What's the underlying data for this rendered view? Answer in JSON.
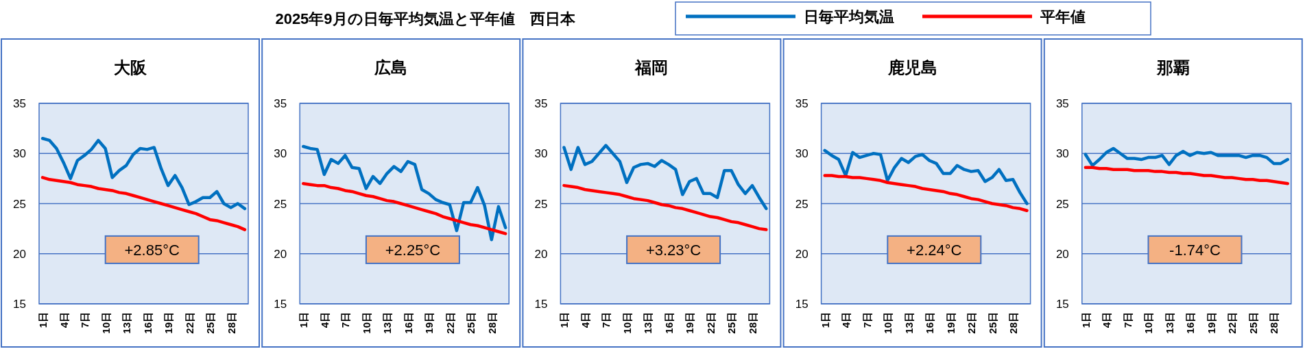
{
  "chart_data": [
    {
      "type": "other",
      "title": "2025年9月の日毎平均気温と平年値　西日本"
    },
    {
      "type": "line",
      "title": "大阪",
      "categories": [
        "1日",
        null,
        null,
        "4日",
        null,
        null,
        "7日",
        null,
        null,
        "10日",
        null,
        null,
        "13日",
        null,
        null,
        "16日",
        null,
        null,
        "19日",
        null,
        null,
        "22日",
        null,
        null,
        "25日",
        null,
        null,
        "28日",
        null,
        null
      ],
      "ylim": [
        15,
        35
      ],
      "yticks": [
        15,
        20,
        25,
        30,
        35
      ],
      "grid": "y",
      "legend": "top",
      "line_style": "solid",
      "annotations": [
        "+2.85°C"
      ],
      "series": [
        {
          "name": "日毎平均気温",
          "color": "#0070c0",
          "values": [
            31.5,
            31.3,
            30.5,
            29.1,
            27.5,
            29.3,
            29.8,
            30.4,
            31.3,
            30.5,
            27.6,
            28.3,
            28.8,
            29.9,
            30.5,
            30.4,
            30.6,
            28.5,
            26.8,
            27.8,
            26.6,
            24.9,
            25.2,
            25.6,
            25.6,
            26.2,
            25.0,
            24.6,
            25.0,
            24.5
          ]
        },
        {
          "name": "平年値",
          "color": "#ff0000",
          "values": [
            27.6,
            27.4,
            27.3,
            27.2,
            27.1,
            26.9,
            26.8,
            26.7,
            26.5,
            26.4,
            26.3,
            26.1,
            26.0,
            25.8,
            25.6,
            25.4,
            25.2,
            25.0,
            24.8,
            24.6,
            24.4,
            24.2,
            24.0,
            23.7,
            23.4,
            23.3,
            23.1,
            22.9,
            22.7,
            22.4
          ]
        }
      ]
    },
    {
      "type": "line",
      "title": "広島",
      "categories": [
        "1日",
        null,
        null,
        "4日",
        null,
        null,
        "7日",
        null,
        null,
        "10日",
        null,
        null,
        "13日",
        null,
        null,
        "16日",
        null,
        null,
        "19日",
        null,
        null,
        "22日",
        null,
        null,
        "25日",
        null,
        null,
        "28日",
        null,
        null
      ],
      "ylim": [
        15,
        35
      ],
      "yticks": [
        15,
        20,
        25,
        30,
        35
      ],
      "grid": "y",
      "line_style": "solid",
      "annotations": [
        "+2.25°C"
      ],
      "series": [
        {
          "color": "#0070c0",
          "values": [
            30.7,
            30.5,
            30.4,
            27.9,
            29.4,
            29.0,
            29.8,
            28.6,
            28.5,
            26.5,
            27.7,
            27.0,
            28.0,
            28.7,
            28.2,
            29.2,
            28.9,
            26.4,
            26.0,
            25.4,
            25.1,
            24.9,
            22.3,
            25.1,
            25.1,
            26.6,
            24.8,
            21.4,
            24.7,
            22.6
          ]
        },
        {
          "color": "#ff0000",
          "values": [
            27.0,
            26.9,
            26.8,
            26.8,
            26.6,
            26.5,
            26.3,
            26.2,
            26.0,
            25.8,
            25.7,
            25.5,
            25.3,
            25.2,
            25.0,
            24.8,
            24.6,
            24.4,
            24.2,
            24.0,
            23.7,
            23.5,
            23.3,
            23.1,
            22.9,
            22.8,
            22.6,
            22.4,
            22.2,
            22.0
          ]
        }
      ]
    },
    {
      "type": "line",
      "title": "福岡",
      "categories": [
        "1日",
        null,
        null,
        "4日",
        null,
        null,
        "7日",
        null,
        null,
        "10日",
        null,
        null,
        "13日",
        null,
        null,
        "16日",
        null,
        null,
        "19日",
        null,
        null,
        "22日",
        null,
        null,
        "25日",
        null,
        null,
        "28日",
        null,
        null
      ],
      "ylim": [
        15,
        35
      ],
      "yticks": [
        15,
        20,
        25,
        30,
        35
      ],
      "grid": "y",
      "line_style": "solid",
      "annotations": [
        "+3.23°C"
      ],
      "series": [
        {
          "color": "#0070c0",
          "values": [
            30.6,
            28.4,
            30.6,
            28.9,
            29.2,
            30.0,
            30.8,
            30.0,
            29.2,
            27.1,
            28.6,
            28.9,
            29.0,
            28.7,
            29.3,
            28.9,
            28.4,
            25.9,
            27.2,
            27.5,
            26.0,
            26.0,
            25.6,
            28.3,
            28.3,
            26.9,
            26.0,
            26.8,
            25.6,
            24.5
          ]
        },
        {
          "color": "#ff0000",
          "values": [
            26.8,
            26.7,
            26.6,
            26.4,
            26.3,
            26.2,
            26.1,
            26.0,
            25.9,
            25.7,
            25.5,
            25.4,
            25.3,
            25.1,
            24.9,
            24.8,
            24.6,
            24.5,
            24.3,
            24.1,
            23.9,
            23.7,
            23.6,
            23.4,
            23.2,
            23.1,
            22.9,
            22.7,
            22.5,
            22.4
          ]
        }
      ]
    },
    {
      "type": "line",
      "title": "鹿児島",
      "categories": [
        "1日",
        null,
        null,
        "4日",
        null,
        null,
        "7日",
        null,
        null,
        "10日",
        null,
        null,
        "13日",
        null,
        null,
        "16日",
        null,
        null,
        "19日",
        null,
        null,
        "22日",
        null,
        null,
        "25日",
        null,
        null,
        "28日",
        null,
        null
      ],
      "ylim": [
        15,
        35
      ],
      "yticks": [
        15,
        20,
        25,
        30,
        35
      ],
      "grid": "y",
      "line_style": "solid",
      "annotations": [
        "+2.24°C"
      ],
      "series": [
        {
          "color": "#0070c0",
          "values": [
            30.3,
            29.8,
            29.4,
            27.8,
            30.1,
            29.6,
            29.8,
            30.0,
            29.9,
            27.3,
            28.6,
            29.5,
            29.1,
            29.7,
            29.9,
            29.3,
            29.0,
            28.0,
            28.0,
            28.8,
            28.4,
            28.2,
            28.3,
            27.2,
            27.6,
            28.4,
            27.3,
            27.4,
            26.1,
            25.0
          ]
        },
        {
          "color": "#ff0000",
          "values": [
            27.8,
            27.8,
            27.7,
            27.7,
            27.6,
            27.6,
            27.5,
            27.4,
            27.3,
            27.1,
            27.0,
            26.9,
            26.8,
            26.7,
            26.5,
            26.4,
            26.3,
            26.2,
            26.0,
            25.9,
            25.7,
            25.5,
            25.4,
            25.2,
            25.0,
            24.9,
            24.8,
            24.6,
            24.5,
            24.3
          ]
        }
      ]
    },
    {
      "type": "line",
      "title": "那覇",
      "categories": [
        "1日",
        null,
        null,
        "4日",
        null,
        null,
        "7日",
        null,
        null,
        "10日",
        null,
        null,
        "13日",
        null,
        null,
        "16日",
        null,
        null,
        "19日",
        null,
        null,
        "22日",
        null,
        null,
        "25日",
        null,
        null,
        "28日",
        null,
        null
      ],
      "ylim": [
        15,
        35
      ],
      "yticks": [
        15,
        20,
        25,
        30,
        35
      ],
      "grid": "y",
      "line_style": "solid",
      "annotations": [
        "-1.74°C"
      ],
      "series": [
        {
          "color": "#0070c0",
          "values": [
            29.9,
            28.8,
            29.4,
            30.1,
            30.5,
            30.0,
            29.5,
            29.5,
            29.4,
            29.6,
            29.6,
            29.8,
            28.9,
            29.8,
            30.2,
            29.8,
            30.1,
            30.0,
            30.1,
            29.8,
            29.8,
            29.8,
            29.8,
            29.6,
            29.8,
            29.8,
            29.6,
            29.0,
            29.0,
            29.4
          ]
        },
        {
          "color": "#ff0000",
          "values": [
            28.6,
            28.6,
            28.5,
            28.5,
            28.4,
            28.4,
            28.4,
            28.3,
            28.3,
            28.3,
            28.2,
            28.2,
            28.1,
            28.1,
            28.0,
            28.0,
            27.9,
            27.8,
            27.8,
            27.7,
            27.6,
            27.6,
            27.5,
            27.4,
            27.4,
            27.3,
            27.3,
            27.2,
            27.1,
            27.0
          ]
        }
      ]
    }
  ]
}
